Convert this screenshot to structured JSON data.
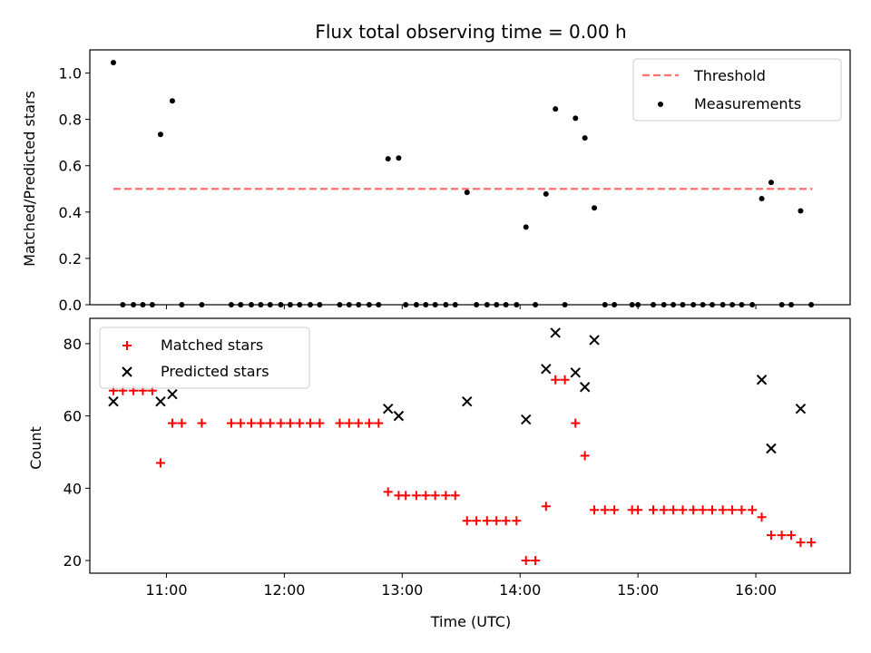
{
  "chart_data": [
    {
      "type": "scatter",
      "title": "Flux total observing time = 0.00 h",
      "xlabel": "",
      "ylabel": "Matched/Predicted stars",
      "xlim": [
        10.35,
        16.8
      ],
      "ylim": [
        0.0,
        1.1
      ],
      "x_ticks": [
        {
          "v": 11,
          "label": "11:00"
        },
        {
          "v": 12,
          "label": "12:00"
        },
        {
          "v": 13,
          "label": "13:00"
        },
        {
          "v": 14,
          "label": "14:00"
        },
        {
          "v": 15,
          "label": "15:00"
        },
        {
          "v": 16,
          "label": "16:00"
        }
      ],
      "y_ticks": [
        {
          "v": 0.0,
          "label": "0.0"
        },
        {
          "v": 0.2,
          "label": "0.2"
        },
        {
          "v": 0.4,
          "label": "0.4"
        },
        {
          "v": 0.6,
          "label": "0.6"
        },
        {
          "v": 0.8,
          "label": "0.8"
        },
        {
          "v": 1.0,
          "label": "1.0"
        }
      ],
      "legend": {
        "position": "top-right",
        "entries": [
          "Threshold",
          "Measurements"
        ]
      },
      "threshold": {
        "name": "Threshold",
        "y": 0.5,
        "x": [
          10.55,
          16.48
        ],
        "color": "#ff6f6f"
      },
      "series": [
        {
          "name": "Measurements",
          "color": "#000000",
          "points": [
            [
              10.55,
              1.045
            ],
            [
              10.95,
              0.735
            ],
            [
              11.05,
              0.88
            ],
            [
              12.88,
              0.63
            ],
            [
              12.97,
              0.633
            ],
            [
              13.55,
              0.485
            ],
            [
              14.05,
              0.335
            ],
            [
              14.22,
              0.478
            ],
            [
              14.3,
              0.845
            ],
            [
              14.47,
              0.805
            ],
            [
              14.55,
              0.72
            ],
            [
              14.63,
              0.418
            ],
            [
              16.05,
              0.458
            ],
            [
              16.13,
              0.528
            ],
            [
              16.38,
              0.405
            ],
            [
              10.63,
              0
            ],
            [
              10.72,
              0
            ],
            [
              10.8,
              0
            ],
            [
              10.88,
              0
            ],
            [
              11.13,
              0
            ],
            [
              11.3,
              0
            ],
            [
              11.55,
              0
            ],
            [
              11.63,
              0
            ],
            [
              11.72,
              0
            ],
            [
              11.8,
              0
            ],
            [
              11.88,
              0
            ],
            [
              11.97,
              0
            ],
            [
              12.05,
              0
            ],
            [
              12.13,
              0
            ],
            [
              12.22,
              0
            ],
            [
              12.3,
              0
            ],
            [
              12.47,
              0
            ],
            [
              12.55,
              0
            ],
            [
              12.63,
              0
            ],
            [
              12.72,
              0
            ],
            [
              12.8,
              0
            ],
            [
              13.03,
              0
            ],
            [
              13.12,
              0
            ],
            [
              13.2,
              0
            ],
            [
              13.28,
              0
            ],
            [
              13.37,
              0
            ],
            [
              13.45,
              0
            ],
            [
              13.63,
              0
            ],
            [
              13.72,
              0
            ],
            [
              13.8,
              0
            ],
            [
              13.88,
              0
            ],
            [
              13.97,
              0
            ],
            [
              14.13,
              0
            ],
            [
              14.38,
              0
            ],
            [
              14.72,
              0
            ],
            [
              14.8,
              0
            ],
            [
              14.95,
              0
            ],
            [
              15.0,
              0
            ],
            [
              15.13,
              0
            ],
            [
              15.22,
              0
            ],
            [
              15.3,
              0
            ],
            [
              15.38,
              0
            ],
            [
              15.47,
              0
            ],
            [
              15.55,
              0
            ],
            [
              15.63,
              0
            ],
            [
              15.72,
              0
            ],
            [
              15.8,
              0
            ],
            [
              15.88,
              0
            ],
            [
              15.97,
              0
            ],
            [
              16.22,
              0
            ],
            [
              16.3,
              0
            ],
            [
              16.47,
              0
            ]
          ]
        }
      ]
    },
    {
      "type": "scatter",
      "title": "",
      "xlabel": "Time (UTC)",
      "ylabel": "Count",
      "xlim": [
        10.35,
        16.8
      ],
      "ylim": [
        16.5,
        87
      ],
      "x_ticks": [
        {
          "v": 11,
          "label": "11:00"
        },
        {
          "v": 12,
          "label": "12:00"
        },
        {
          "v": 13,
          "label": "13:00"
        },
        {
          "v": 14,
          "label": "14:00"
        },
        {
          "v": 15,
          "label": "15:00"
        },
        {
          "v": 16,
          "label": "16:00"
        }
      ],
      "y_ticks": [
        {
          "v": 20,
          "label": "20"
        },
        {
          "v": 40,
          "label": "40"
        },
        {
          "v": 60,
          "label": "60"
        },
        {
          "v": 80,
          "label": "80"
        }
      ],
      "legend": {
        "position": "top-left",
        "entries": [
          "Matched stars",
          "Predicted stars"
        ]
      },
      "series": [
        {
          "name": "Matched stars",
          "marker": "plus",
          "color": "#ff0000",
          "points": [
            [
              10.55,
              67
            ],
            [
              10.63,
              67
            ],
            [
              10.72,
              67
            ],
            [
              10.8,
              67
            ],
            [
              10.88,
              67
            ],
            [
              10.95,
              47
            ],
            [
              11.05,
              58
            ],
            [
              11.13,
              58
            ],
            [
              11.3,
              58
            ],
            [
              11.55,
              58
            ],
            [
              11.63,
              58
            ],
            [
              11.72,
              58
            ],
            [
              11.8,
              58
            ],
            [
              11.88,
              58
            ],
            [
              11.97,
              58
            ],
            [
              12.05,
              58
            ],
            [
              12.13,
              58
            ],
            [
              12.22,
              58
            ],
            [
              12.3,
              58
            ],
            [
              12.47,
              58
            ],
            [
              12.55,
              58
            ],
            [
              12.63,
              58
            ],
            [
              12.72,
              58
            ],
            [
              12.8,
              58
            ],
            [
              12.88,
              39
            ],
            [
              12.97,
              38
            ],
            [
              13.03,
              38
            ],
            [
              13.12,
              38
            ],
            [
              13.2,
              38
            ],
            [
              13.28,
              38
            ],
            [
              13.37,
              38
            ],
            [
              13.45,
              38
            ],
            [
              13.55,
              31
            ],
            [
              13.63,
              31
            ],
            [
              13.72,
              31
            ],
            [
              13.8,
              31
            ],
            [
              13.88,
              31
            ],
            [
              13.97,
              31
            ],
            [
              14.05,
              20
            ],
            [
              14.13,
              20
            ],
            [
              14.22,
              35
            ],
            [
              14.3,
              70
            ],
            [
              14.38,
              70
            ],
            [
              14.47,
              58
            ],
            [
              14.55,
              49
            ],
            [
              14.63,
              34
            ],
            [
              14.72,
              34
            ],
            [
              14.8,
              34
            ],
            [
              14.95,
              34
            ],
            [
              15.0,
              34
            ],
            [
              15.13,
              34
            ],
            [
              15.22,
              34
            ],
            [
              15.3,
              34
            ],
            [
              15.38,
              34
            ],
            [
              15.47,
              34
            ],
            [
              15.55,
              34
            ],
            [
              15.63,
              34
            ],
            [
              15.72,
              34
            ],
            [
              15.8,
              34
            ],
            [
              15.88,
              34
            ],
            [
              15.97,
              34
            ],
            [
              16.05,
              32
            ],
            [
              16.13,
              27
            ],
            [
              16.22,
              27
            ],
            [
              16.3,
              27
            ],
            [
              16.38,
              25
            ],
            [
              16.47,
              25
            ]
          ]
        },
        {
          "name": "Predicted stars",
          "marker": "x",
          "color": "#000000",
          "points": [
            [
              10.55,
              64
            ],
            [
              10.95,
              64
            ],
            [
              11.05,
              66
            ],
            [
              12.88,
              62
            ],
            [
              12.97,
              60
            ],
            [
              13.55,
              64
            ],
            [
              14.05,
              59
            ],
            [
              14.22,
              73
            ],
            [
              14.3,
              83
            ],
            [
              14.47,
              72
            ],
            [
              14.55,
              68
            ],
            [
              14.63,
              81
            ],
            [
              16.05,
              70
            ],
            [
              16.13,
              51
            ],
            [
              16.38,
              62
            ]
          ]
        }
      ]
    }
  ]
}
